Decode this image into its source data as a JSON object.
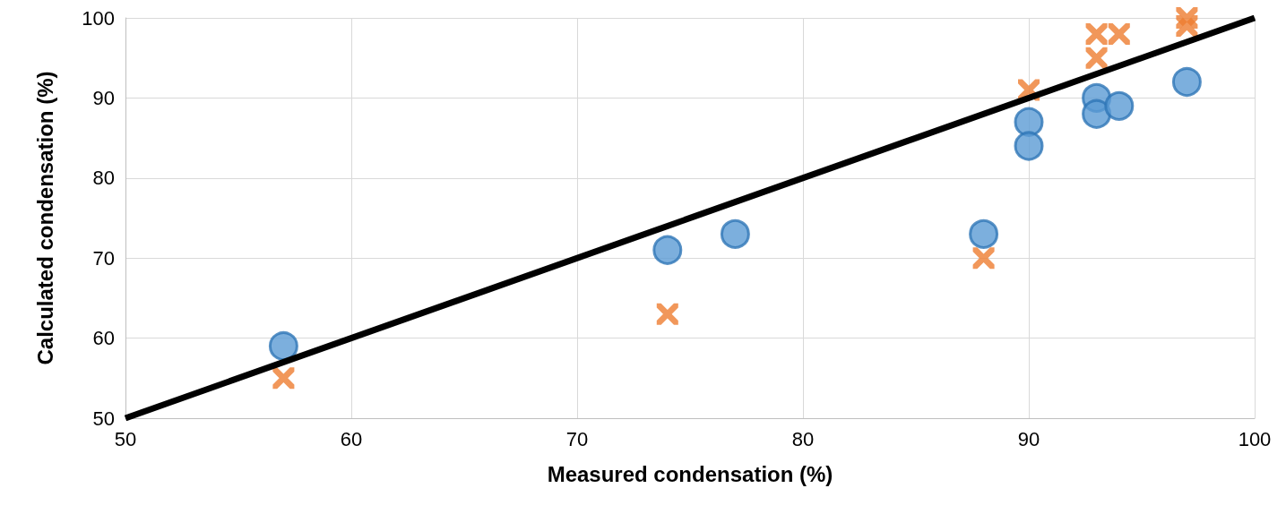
{
  "chart_data": {
    "type": "scatter",
    "xlabel": "Measured condensation (%)",
    "ylabel": "Calculated condensation (%)",
    "xlim": [
      50,
      100
    ],
    "xticks": [
      50,
      60,
      70,
      80,
      90,
      100
    ],
    "ylim": [
      50,
      100
    ],
    "yticks": [
      50,
      60,
      70,
      80,
      90,
      100
    ],
    "grid": true,
    "series": [
      {
        "color": "#5b9bd5",
        "marker": "circle",
        "x": [
          57,
          74,
          77,
          88,
          90,
          90,
          93,
          93,
          94,
          97
        ],
        "values": [
          59,
          71,
          73,
          73,
          87,
          84,
          90,
          88,
          89,
          92
        ]
      },
      {
        "color": "#ed7d31",
        "marker": "cross",
        "x": [
          57,
          74,
          88,
          90,
          93,
          93,
          94,
          97,
          97
        ],
        "values": [
          55,
          63,
          70,
          91,
          98,
          95,
          98,
          100,
          99
        ]
      },
      {
        "type": "line",
        "color": "#000000",
        "marker": "none",
        "x": [
          50,
          100
        ],
        "values": [
          50,
          100
        ]
      }
    ]
  }
}
